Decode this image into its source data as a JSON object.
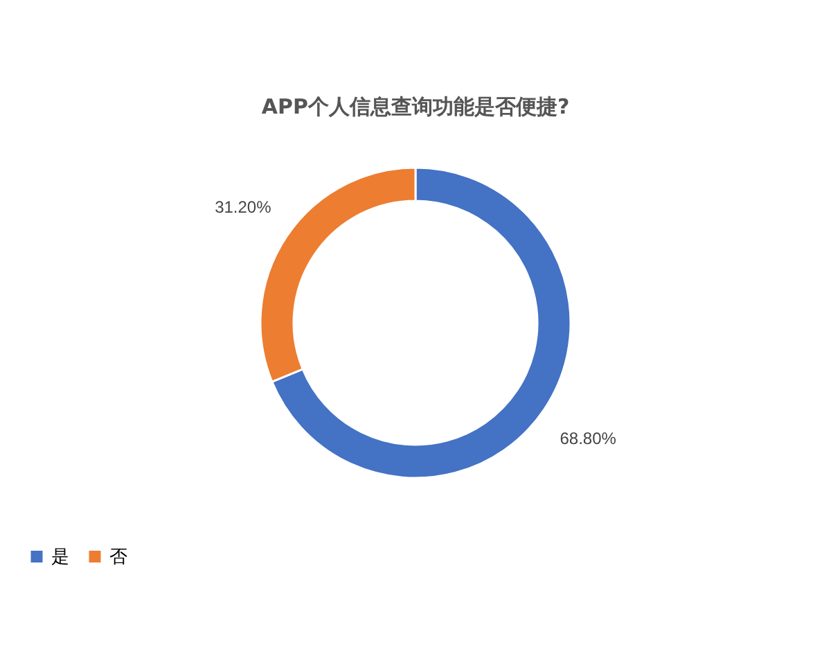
{
  "chart_data": {
    "type": "donut",
    "title": "APP个人信息查询功能是否便捷?",
    "categories": [
      "是",
      "否"
    ],
    "values": [
      68.8,
      31.2
    ],
    "colors": [
      "#4472c4",
      "#ed7d31"
    ],
    "value_labels": [
      "68.80%",
      "31.20%"
    ],
    "legend": "bottom"
  }
}
